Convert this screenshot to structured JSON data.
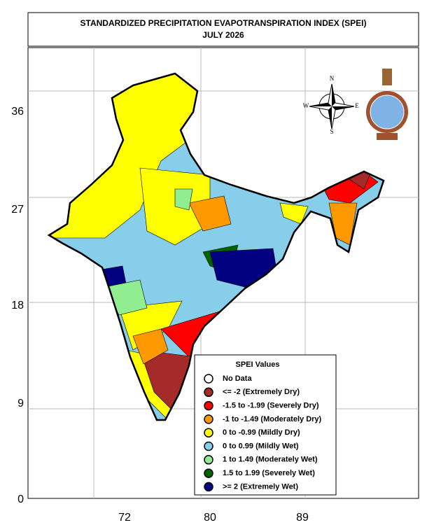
{
  "title": {
    "line1": "STANDARDIZED PRECIPITATION EVAPOTRANSPIRATION INDEX (SPEI)",
    "line2": "JULY 2026"
  },
  "axes": {
    "y_labels": [
      "36",
      "27",
      "18",
      "9",
      "0"
    ],
    "x_labels": [
      "72",
      "80",
      "89"
    ]
  },
  "compass": {
    "n": "N",
    "s": "S",
    "e": "E",
    "w": "W"
  },
  "legend": {
    "title": "SPEI Values",
    "items": [
      {
        "label": "No Data",
        "color": "#ffffff"
      },
      {
        "label": "<= -2 (Extremely Dry)",
        "color": "#a52a2a"
      },
      {
        "label": "-1.5 to -1.99 (Severely Dry)",
        "color": "#ff0000"
      },
      {
        "label": "-1 to -1.49 (Moderately Dry)",
        "color": "#ff9900"
      },
      {
        "label": "0 to -0.99 (Mildly  Dry)",
        "color": "#ffff00"
      },
      {
        "label": "0 to 0.99 (Mildly  Wet)",
        "color": "#87ceeb"
      },
      {
        "label": "1 to 1.49 (Moderately Wet)",
        "color": "#90ee90"
      },
      {
        "label": "1.5 to 1.99 (Severely Wet)",
        "color": "#006400"
      },
      {
        "label": ">= 2 (Extremely Wet)",
        "color": "#000080"
      }
    ]
  }
}
